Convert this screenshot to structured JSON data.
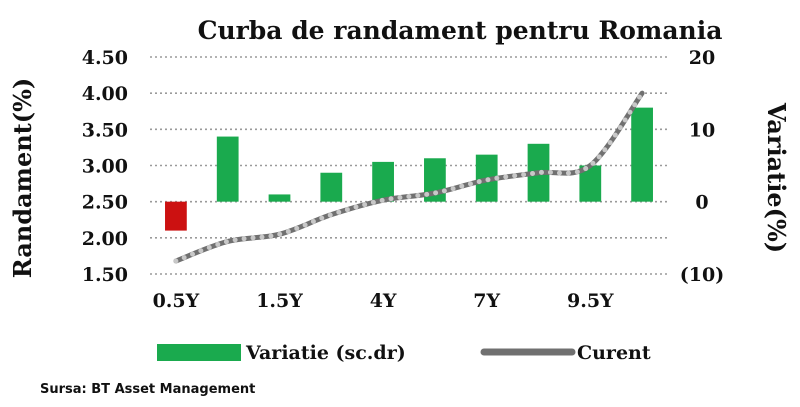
{
  "chart_data": {
    "type": "bar",
    "title": "Curba de randament pentru Romania",
    "ylabel": "Randament(%)",
    "y2label": "Variatie(%)",
    "ylim": [
      1.5,
      4.5
    ],
    "y2lim": [
      -10,
      20
    ],
    "yticks": [
      "4.50",
      "4.00",
      "3.50",
      "3.00",
      "2.50",
      "2.00",
      "1.50"
    ],
    "y2ticks": [
      "20",
      "10",
      "0",
      "(10)"
    ],
    "xticklabels": [
      "0.5Y",
      "1.5Y",
      "4Y",
      "7Y",
      "9.5Y"
    ],
    "grid": true,
    "legend_position": "bottom",
    "colors": {
      "positive": "#1aaa4e",
      "negative": "#cc1111",
      "line": "#707070",
      "dots": "#c8c8c8",
      "negative_tick": "#dd1111"
    },
    "series": [
      {
        "name": "Variatie (sc.dr)",
        "type": "bar",
        "axis": "right",
        "values": [
          -4,
          9,
          1,
          4,
          5.5,
          6,
          6.5,
          8,
          5,
          13
        ]
      },
      {
        "name": "Curent",
        "type": "line",
        "axis": "left",
        "values": [
          1.68,
          1.95,
          2.05,
          2.32,
          2.52,
          2.62,
          2.8,
          2.9,
          3.0,
          4.0
        ]
      }
    ]
  },
  "source": "Sursa: BT Asset Management"
}
